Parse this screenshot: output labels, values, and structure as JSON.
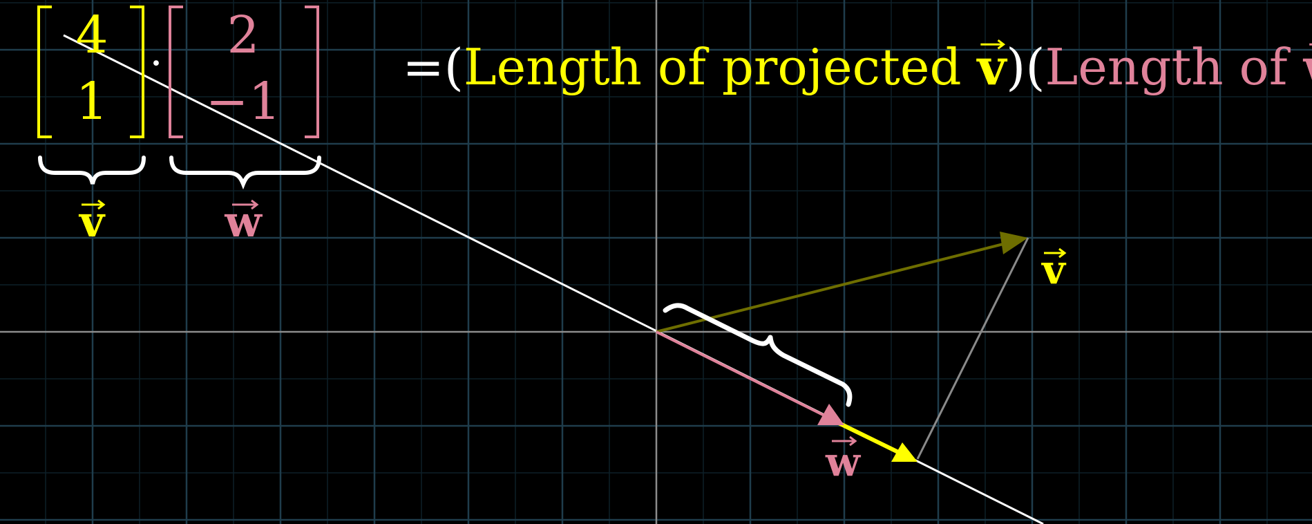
{
  "colors": {
    "background": "#000000",
    "grid_minor": "#0d2028",
    "grid_major": "#1f3d4c",
    "axis": "#8c8c8c",
    "yellow": "#ffff00",
    "pink": "#e0829a",
    "olive": "#6e6e00",
    "white": "#ffffff",
    "gray_drop": "#8a8a8a"
  },
  "equation": {
    "v_top": "4",
    "v_bottom": "1",
    "dot": "·",
    "w_top": "2",
    "w_bottom": "−1",
    "equals": "=",
    "open_paren_1": "(",
    "factor_1_text": "Length of projected ",
    "factor_1_vec": "v",
    "close_paren_1": ")",
    "open_paren_2": "(",
    "factor_2_text": "Length of ",
    "factor_2_vec": "w",
    "close_paren_2": ")"
  },
  "labels": {
    "brace_v_label": "v",
    "brace_w_label": "w",
    "plane_v_label": "v",
    "plane_w_label": "w"
  },
  "vectors": {
    "v": [
      4,
      1
    ],
    "w": [
      2,
      -1
    ]
  },
  "icons": [
    "vector-arrow-icon",
    "curly-brace-icon"
  ]
}
